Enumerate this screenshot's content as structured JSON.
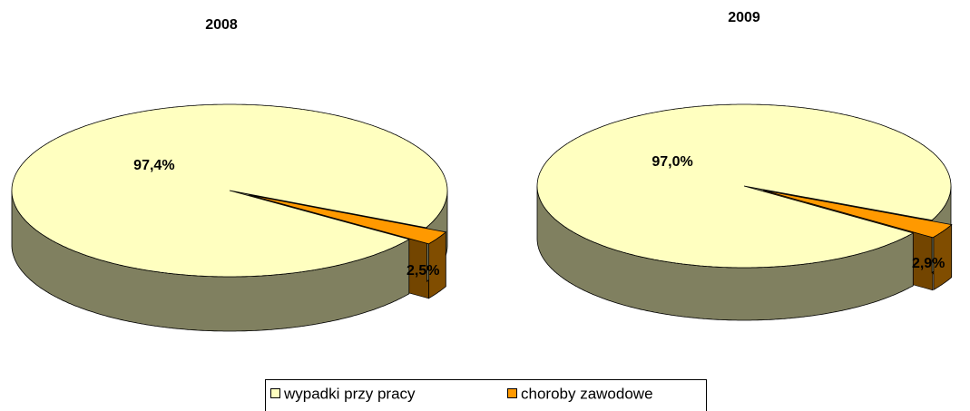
{
  "chart_data": [
    {
      "type": "pie",
      "title": "2008",
      "categories": [
        "wypadki przy pracy",
        "choroby zawodowe"
      ],
      "values": [
        97.4,
        2.5
      ],
      "value_labels": [
        "97,4%",
        "2,5%"
      ],
      "colors": [
        "#ffffc0",
        "#ff9900"
      ],
      "legend": "bottom"
    },
    {
      "type": "pie",
      "title": "2009",
      "categories": [
        "wypadki przy pracy",
        "choroby zawodowe"
      ],
      "values": [
        97.0,
        2.9
      ],
      "value_labels": [
        "97,0%",
        "2,9%"
      ],
      "colors": [
        "#ffffc0",
        "#ff9900"
      ],
      "legend": "bottom"
    }
  ]
}
